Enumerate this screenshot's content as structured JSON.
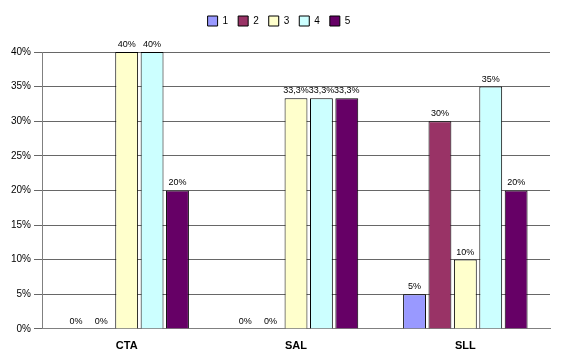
{
  "chart_data": {
    "type": "bar",
    "categories": [
      "CTA",
      "SAL",
      "SLL"
    ],
    "series": [
      {
        "name": "1",
        "color": "#9999ff",
        "values": [
          0,
          0,
          5
        ],
        "value_labels": [
          "0%",
          "0%",
          "5%"
        ]
      },
      {
        "name": "2",
        "color": "#993366",
        "values": [
          0,
          0,
          30
        ],
        "value_labels": [
          "0%",
          "0%",
          "30%"
        ]
      },
      {
        "name": "3",
        "color": "#ffffcc",
        "values": [
          40,
          33.3,
          10
        ],
        "value_labels": [
          "40%",
          "33,3%",
          "10%"
        ]
      },
      {
        "name": "4",
        "color": "#ccffff",
        "values": [
          40,
          33.3,
          35
        ],
        "value_labels": [
          "40%",
          "33,3%",
          "35%"
        ]
      },
      {
        "name": "5",
        "color": "#660066",
        "values": [
          20,
          33.3,
          20
        ],
        "value_labels": [
          "20%",
          "33,3%",
          "20%"
        ]
      }
    ],
    "ylim": [
      0,
      40
    ],
    "yticks": [
      {
        "value": 0,
        "label": "0%"
      },
      {
        "value": 5,
        "label": "5%"
      },
      {
        "value": 10,
        "label": "10%"
      },
      {
        "value": 15,
        "label": "15%"
      },
      {
        "value": 20,
        "label": "20%"
      },
      {
        "value": 25,
        "label": "25%"
      },
      {
        "value": 30,
        "label": "30%"
      },
      {
        "value": 35,
        "label": "35%"
      },
      {
        "value": 40,
        "label": "40%"
      }
    ],
    "grid": true,
    "legend": "top",
    "data_labels": true
  }
}
